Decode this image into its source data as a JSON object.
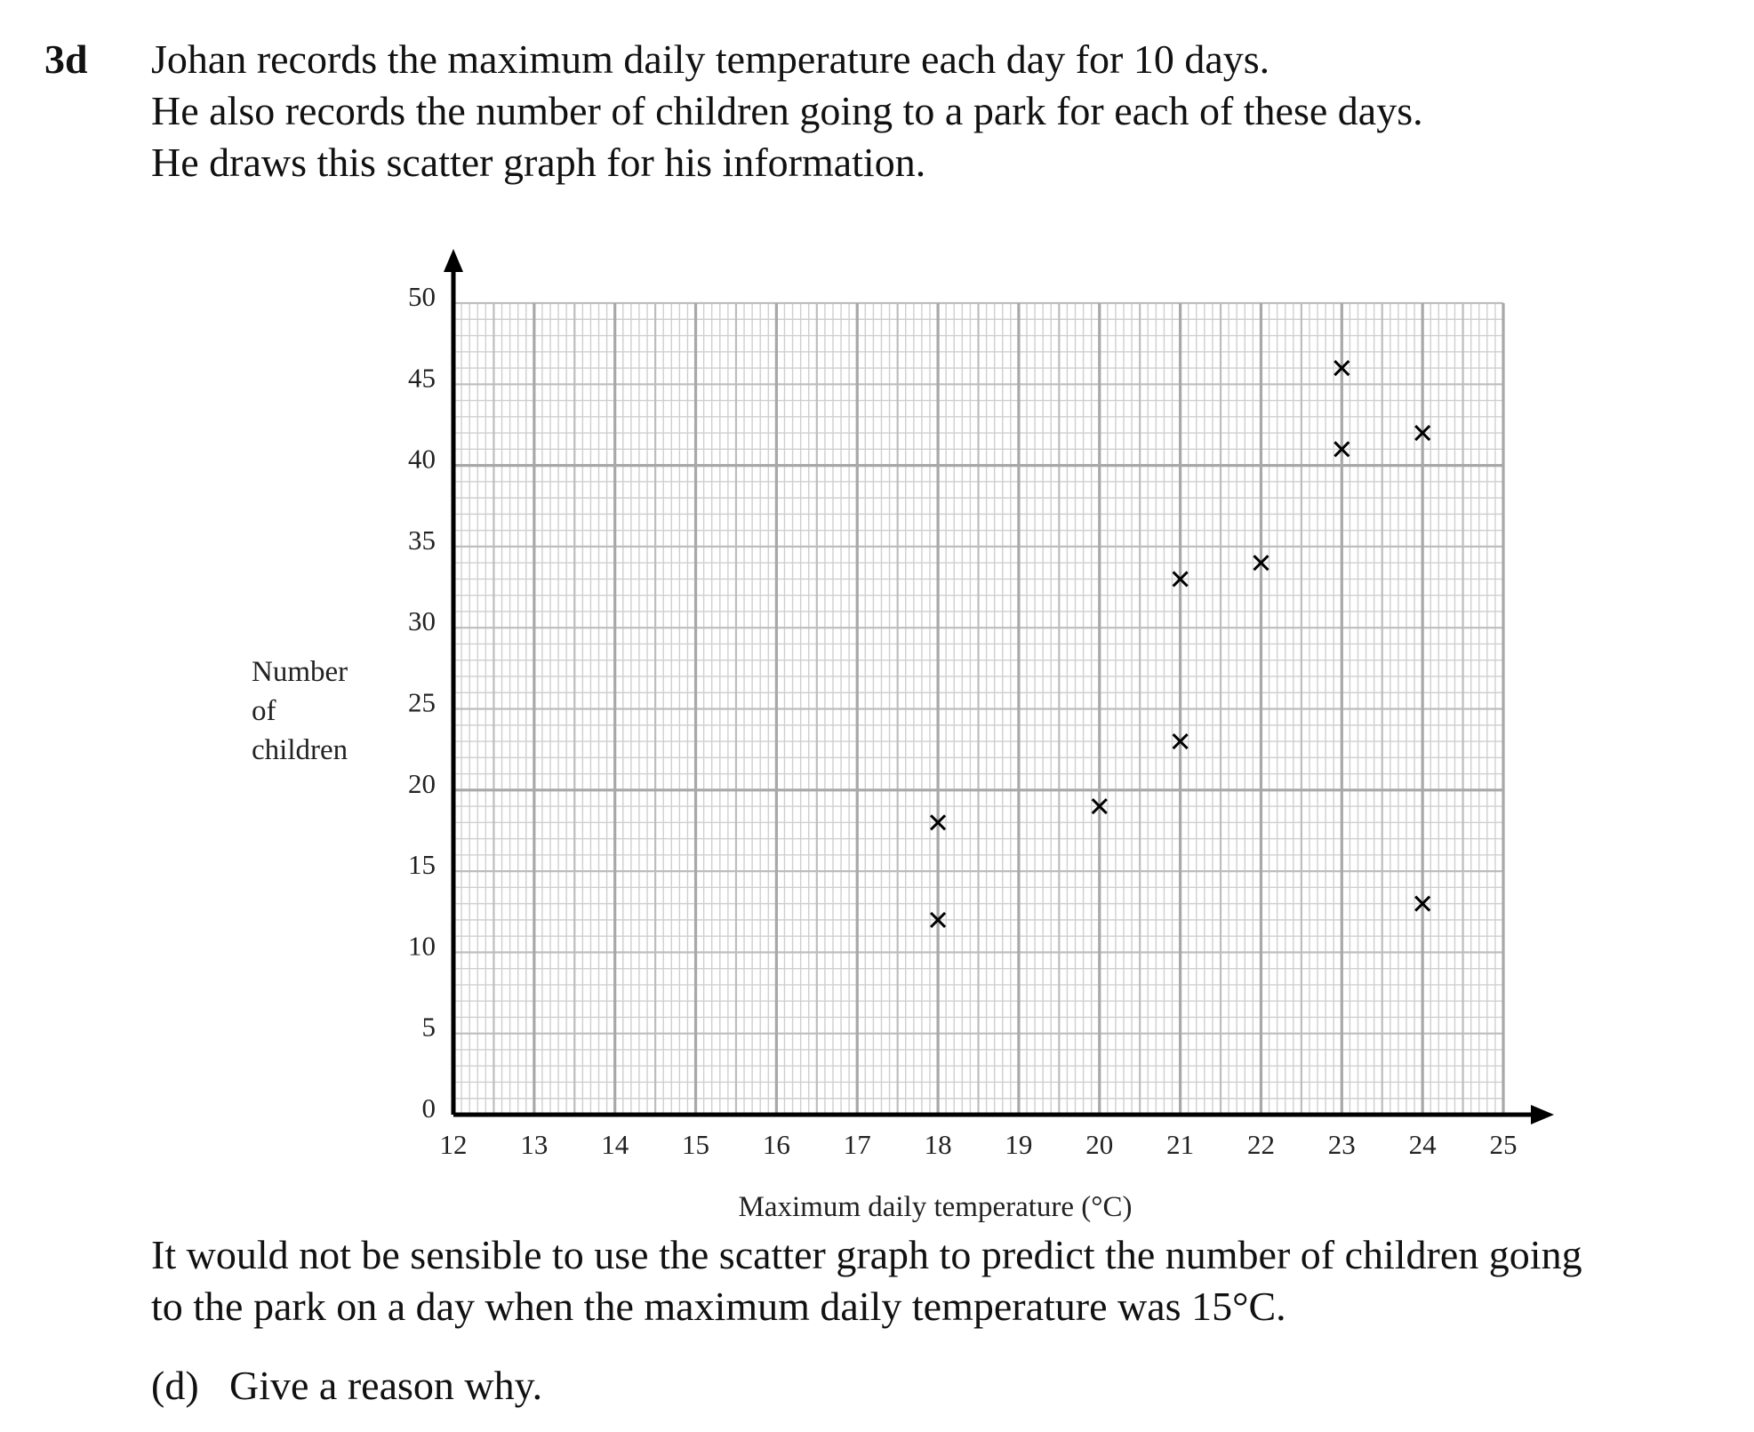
{
  "question": {
    "number": "3d",
    "intro_lines": [
      "Johan records the maximum daily temperature each day for 10 days.",
      "He also records the number of children going to a park for each of these days.",
      "He draws this scatter graph for his information."
    ],
    "outro_lines": [
      "It would not be sensible to use the scatter graph to predict the number of children going",
      "to the park on a day when the maximum daily temperature was 15°C."
    ],
    "part_label": "(d)",
    "part_text": "Give a reason why."
  },
  "chart_data": {
    "type": "scatter",
    "title": "",
    "xlabel": "Maximum daily temperature (°C)",
    "ylabel_lines": [
      "Number",
      "of",
      "children"
    ],
    "xlim": [
      12,
      25
    ],
    "ylim": [
      0,
      50
    ],
    "x_ticks": [
      "12",
      "13",
      "14",
      "15",
      "16",
      "17",
      "18",
      "19",
      "20",
      "21",
      "22",
      "23",
      "24",
      "25"
    ],
    "y_ticks": [
      "0",
      "5",
      "10",
      "15",
      "20",
      "25",
      "30",
      "35",
      "40",
      "45",
      "50"
    ],
    "marker": "cross",
    "grid": true,
    "points": [
      {
        "x": 18,
        "y": 18
      },
      {
        "x": 18,
        "y": 12
      },
      {
        "x": 20,
        "y": 19
      },
      {
        "x": 21,
        "y": 23
      },
      {
        "x": 21,
        "y": 33
      },
      {
        "x": 22,
        "y": 34
      },
      {
        "x": 23,
        "y": 41
      },
      {
        "x": 23,
        "y": 46
      },
      {
        "x": 24,
        "y": 42
      },
      {
        "x": 24,
        "y": 13
      }
    ]
  }
}
